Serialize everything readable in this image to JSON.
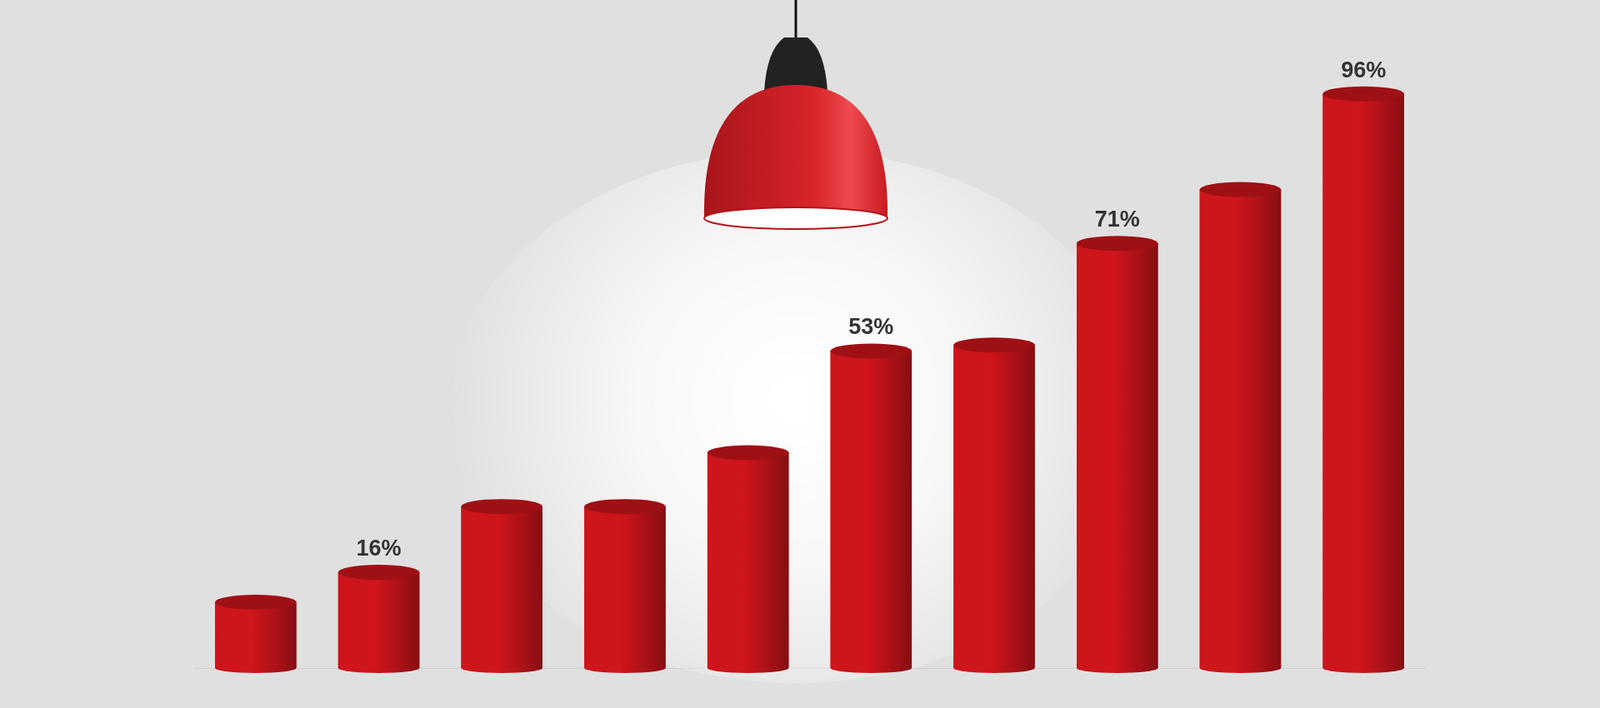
{
  "chart_data": {
    "type": "bar",
    "categories": [
      null,
      null,
      null,
      null,
      null,
      null,
      null,
      null,
      null,
      null
    ],
    "values": [
      11,
      16,
      27,
      27,
      36,
      53,
      54,
      71,
      80,
      96
    ],
    "value_labels": [
      null,
      "16%",
      null,
      null,
      null,
      "53%",
      null,
      "71%",
      null,
      "96%"
    ],
    "data_labels": true,
    "color": "#cc151b",
    "ylim": [
      0,
      100
    ],
    "grid": false,
    "tick_labels": false
  }
}
